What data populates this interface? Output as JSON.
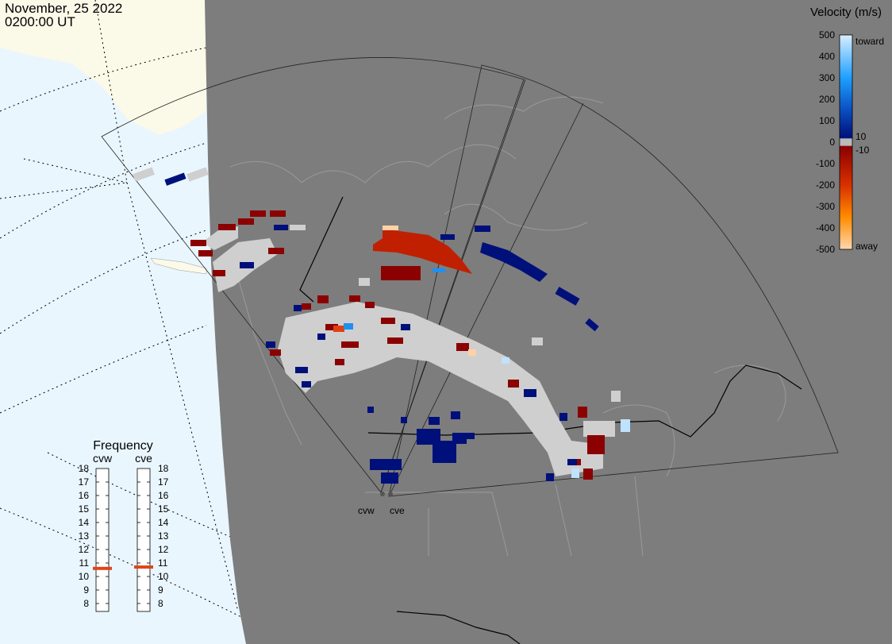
{
  "title": {
    "date": "November, 25 2022",
    "time": "0200:00 UT"
  },
  "colorbar": {
    "title": "Velocity (m/s)",
    "ticks": [
      "500",
      "400",
      "300",
      "200",
      "100",
      "0",
      "-100",
      "-200",
      "-300",
      "-400",
      "-500"
    ],
    "label_10": "10",
    "label_m10": "-10",
    "label_toward": "toward",
    "label_away": "away"
  },
  "frequency": {
    "title": "Frequency",
    "ticks": [
      "18",
      "17",
      "16",
      "15",
      "14",
      "13",
      "12",
      "11",
      "10",
      "9",
      "8"
    ],
    "radars": [
      {
        "name": "cvw",
        "value": 10.6
      },
      {
        "name": "cve",
        "value": 10.7
      }
    ]
  },
  "radar_labels": [
    "cvw",
    "cve"
  ],
  "colors": {
    "land": "#7d7d7d",
    "ocean": "#e9f6fe",
    "arctic_land": "#fbf9e8",
    "ground_scatter": "#cfcfcf",
    "toward": "#00107a",
    "away": "#8b0000",
    "freq_marker": "#e0441a"
  }
}
